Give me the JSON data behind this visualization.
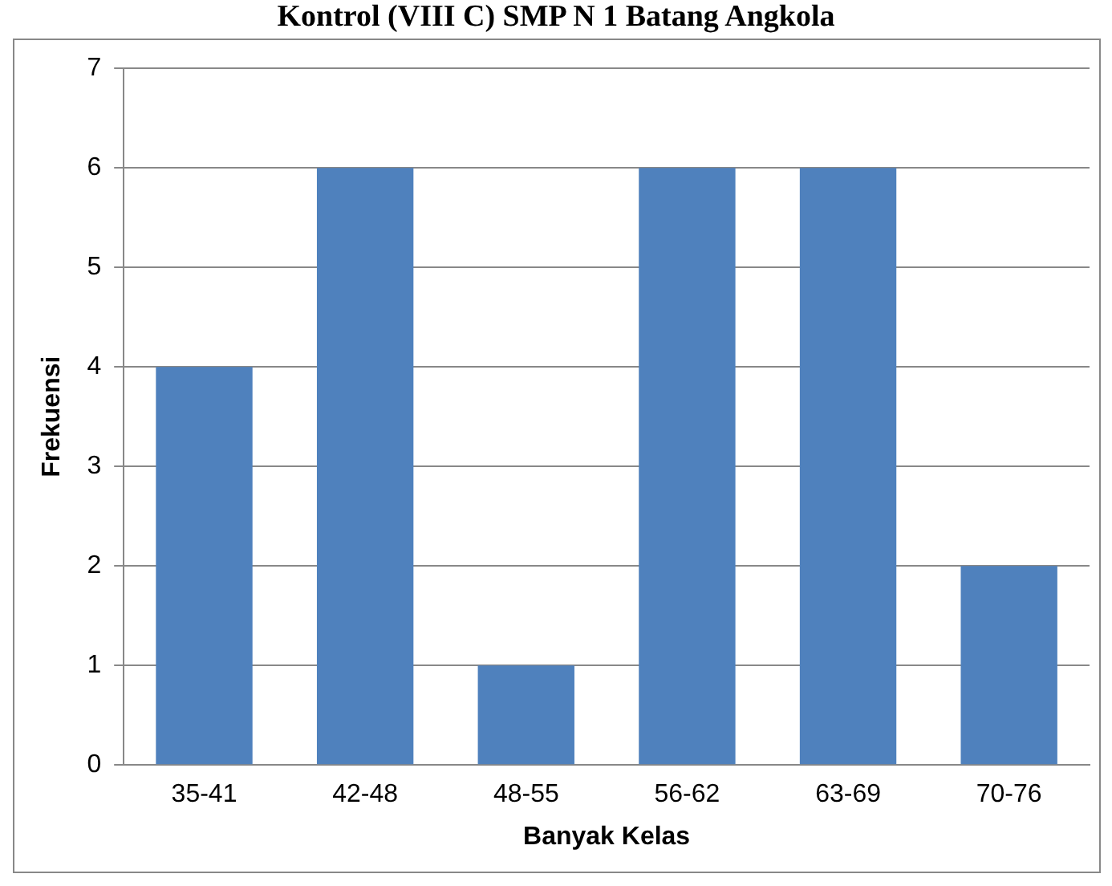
{
  "chart_data": {
    "type": "bar",
    "title": "Kontrol (VIII C) SMP N 1 Batang Angkola",
    "categories": [
      "35-41",
      "42-48",
      "48-55",
      "56-62",
      "63-69",
      "70-76"
    ],
    "values": [
      4,
      6,
      1,
      6,
      6,
      2
    ],
    "color": "#4f81bd",
    "xlabel": "Banyak Kelas",
    "ylabel": "Frekuensi",
    "ylim": [
      0,
      7
    ],
    "yticks": [
      0,
      1,
      2,
      3,
      4,
      5,
      6,
      7
    ],
    "grid": "y",
    "legend": false
  }
}
